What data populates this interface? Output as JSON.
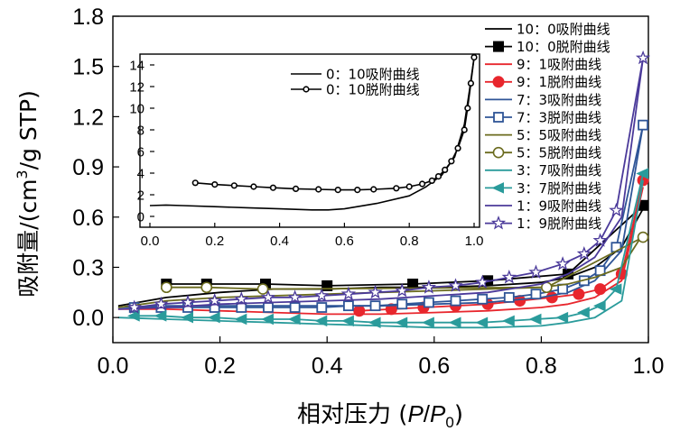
{
  "chart_data": [
    {
      "type": "line",
      "title": "",
      "xlabel": "相对压力 (P/P0)",
      "xlabel_prefix": "相对压力 (",
      "xlabel_P": "P",
      "xlabel_slash": "/",
      "xlabel_P0": "P",
      "xlabel_sub": "0",
      "xlabel_suffix": ")",
      "ylabel": "吸附量/(cm3/g STP)",
      "ylabel_prefix": "吸附量/(cm",
      "ylabel_sup": "3",
      "ylabel_suffix": "/g STP)",
      "xlim": [
        0.0,
        1.0
      ],
      "ylim": [
        -0.15,
        1.8
      ],
      "xticks": [
        "0.0",
        "0.2",
        "0.4",
        "0.6",
        "0.8",
        "1.0"
      ],
      "xtick_values": [
        0.0,
        0.2,
        0.4,
        0.6,
        0.8,
        1.0
      ],
      "yticks": [
        "0.0",
        "0.3",
        "0.6",
        "0.9",
        "1.2",
        "1.5",
        "1.8"
      ],
      "ytick_values": [
        0.0,
        0.3,
        0.6,
        0.9,
        1.2,
        1.5,
        1.8
      ],
      "legend_position": "top-right",
      "series": [
        {
          "name": "10：0吸附曲线",
          "color": "#000000",
          "marker": "none",
          "x": [
            0.01,
            0.1,
            0.2,
            0.3,
            0.4,
            0.5,
            0.6,
            0.7,
            0.8,
            0.85,
            0.9,
            0.95,
            0.99
          ],
          "y": [
            0.07,
            0.12,
            0.15,
            0.17,
            0.17,
            0.18,
            0.18,
            0.19,
            0.21,
            0.24,
            0.3,
            0.42,
            0.65
          ]
        },
        {
          "name": "10：0脱附曲线",
          "color": "#000000",
          "marker": "square-filled",
          "x": [
            0.1,
            0.175,
            0.285,
            0.4,
            0.56,
            0.7,
            0.85,
            0.99
          ],
          "y": [
            0.2,
            0.2,
            0.2,
            0.19,
            0.2,
            0.22,
            0.26,
            0.67
          ]
        },
        {
          "name": "9：1吸附曲线",
          "color": "#e8262d",
          "marker": "none",
          "x": [
            0.01,
            0.1,
            0.2,
            0.3,
            0.4,
            0.5,
            0.6,
            0.7,
            0.8,
            0.85,
            0.9,
            0.95,
            0.99
          ],
          "y": [
            0.05,
            0.05,
            0.04,
            0.03,
            0.02,
            0.02,
            0.03,
            0.04,
            0.06,
            0.08,
            0.12,
            0.22,
            0.78
          ]
        },
        {
          "name": "9：1脱附曲线",
          "color": "#e8262d",
          "marker": "circle-filled",
          "x": [
            0.46,
            0.52,
            0.58,
            0.64,
            0.7,
            0.76,
            0.82,
            0.87,
            0.91,
            0.95,
            0.99
          ],
          "y": [
            0.04,
            0.05,
            0.06,
            0.07,
            0.08,
            0.1,
            0.12,
            0.14,
            0.17,
            0.26,
            0.82
          ]
        },
        {
          "name": "7：3吸附曲线",
          "color": "#2f5597",
          "marker": "none",
          "x": [
            0.01,
            0.1,
            0.2,
            0.3,
            0.4,
            0.5,
            0.6,
            0.7,
            0.8,
            0.85,
            0.9,
            0.95,
            0.99
          ],
          "y": [
            0.06,
            0.07,
            0.07,
            0.07,
            0.07,
            0.07,
            0.08,
            0.09,
            0.12,
            0.15,
            0.22,
            0.4,
            1.15
          ]
        },
        {
          "name": "7：3脱附曲线",
          "color": "#2f5597",
          "marker": "square-open",
          "x": [
            0.04,
            0.09,
            0.14,
            0.19,
            0.24,
            0.29,
            0.34,
            0.39,
            0.44,
            0.49,
            0.54,
            0.59,
            0.64,
            0.69,
            0.74,
            0.79,
            0.84,
            0.88,
            0.91,
            0.94,
            0.99
          ],
          "y": [
            0.06,
            0.06,
            0.06,
            0.06,
            0.06,
            0.06,
            0.06,
            0.06,
            0.07,
            0.07,
            0.08,
            0.09,
            0.1,
            0.11,
            0.12,
            0.14,
            0.17,
            0.22,
            0.28,
            0.42,
            1.15
          ]
        },
        {
          "name": "5：5吸附曲线",
          "color": "#6b6b1e",
          "marker": "none",
          "x": [
            0.01,
            0.1,
            0.2,
            0.3,
            0.4,
            0.5,
            0.6,
            0.7,
            0.8,
            0.85,
            0.9,
            0.95,
            0.99
          ],
          "y": [
            0.06,
            0.1,
            0.12,
            0.13,
            0.14,
            0.15,
            0.16,
            0.17,
            0.18,
            0.2,
            0.24,
            0.3,
            0.5
          ]
        },
        {
          "name": "5：5脱附曲线",
          "color": "#6b6b1e",
          "marker": "circle-open",
          "x": [
            0.1,
            0.175,
            0.28,
            0.81,
            0.99
          ],
          "y": [
            0.18,
            0.18,
            0.17,
            0.18,
            0.48
          ]
        },
        {
          "name": "3：7吸附曲线",
          "color": "#2a9b9b",
          "marker": "none",
          "x": [
            0.01,
            0.1,
            0.2,
            0.3,
            0.4,
            0.5,
            0.6,
            0.7,
            0.8,
            0.85,
            0.9,
            0.95,
            0.99
          ],
          "y": [
            0.0,
            -0.01,
            -0.02,
            -0.03,
            -0.04,
            -0.05,
            -0.06,
            -0.06,
            -0.05,
            -0.03,
            0.0,
            0.1,
            0.82
          ]
        },
        {
          "name": "3：7脱附曲线",
          "color": "#2a9b9b",
          "marker": "triangle-left-filled",
          "x": [
            0.04,
            0.09,
            0.14,
            0.19,
            0.24,
            0.29,
            0.34,
            0.39,
            0.44,
            0.49,
            0.54,
            0.59,
            0.64,
            0.69,
            0.74,
            0.79,
            0.84,
            0.88,
            0.91,
            0.94,
            0.99
          ],
          "y": [
            0.01,
            0.01,
            0.0,
            0.0,
            -0.01,
            -0.01,
            -0.01,
            -0.02,
            -0.02,
            -0.03,
            -0.03,
            -0.03,
            -0.03,
            -0.03,
            -0.02,
            -0.01,
            0.0,
            0.03,
            0.07,
            0.17,
            0.86
          ]
        },
        {
          "name": "1：9吸附曲线",
          "color": "#4b3a9a",
          "marker": "none",
          "x": [
            0.01,
            0.1,
            0.2,
            0.3,
            0.4,
            0.5,
            0.6,
            0.7,
            0.8,
            0.85,
            0.9,
            0.95,
            0.99
          ],
          "y": [
            0.05,
            0.06,
            0.08,
            0.09,
            0.1,
            0.11,
            0.13,
            0.15,
            0.2,
            0.26,
            0.36,
            0.6,
            1.55
          ]
        },
        {
          "name": "1：9脱附曲线",
          "color": "#4b3a9a",
          "marker": "star-open",
          "x": [
            0.04,
            0.09,
            0.14,
            0.19,
            0.24,
            0.29,
            0.34,
            0.39,
            0.44,
            0.49,
            0.54,
            0.59,
            0.64,
            0.69,
            0.74,
            0.79,
            0.84,
            0.88,
            0.91,
            0.94,
            0.99
          ],
          "y": [
            0.06,
            0.08,
            0.09,
            0.1,
            0.11,
            0.12,
            0.12,
            0.13,
            0.14,
            0.15,
            0.16,
            0.18,
            0.19,
            0.21,
            0.24,
            0.27,
            0.32,
            0.38,
            0.46,
            0.64,
            1.55
          ]
        }
      ]
    },
    {
      "type": "line",
      "title": "",
      "xlabel": "",
      "ylabel": "",
      "xlim": [
        0.0,
        1.0
      ],
      "ylim": [
        -1,
        15
      ],
      "xticks": [
        "0.0",
        "0.2",
        "0.4",
        "0.6",
        "0.8",
        "1.0"
      ],
      "xtick_values": [
        0.0,
        0.2,
        0.4,
        0.6,
        0.8,
        1.0
      ],
      "yticks": [
        "0",
        "2",
        "4",
        "6",
        "8",
        "10",
        "12",
        "14"
      ],
      "ytick_values": [
        0,
        2,
        4,
        6,
        8,
        10,
        12,
        14
      ],
      "legend_position": "top-right",
      "series": [
        {
          "name": "0：10吸附曲线",
          "color": "#000000",
          "marker": "none",
          "x": [
            0.0,
            0.05,
            0.1,
            0.2,
            0.3,
            0.4,
            0.5,
            0.55,
            0.6,
            0.7,
            0.8,
            0.85,
            0.9,
            0.94,
            0.97,
            0.985,
            1.0
          ],
          "y": [
            1.0,
            1.05,
            1.0,
            0.9,
            0.8,
            0.7,
            0.6,
            0.6,
            0.7,
            1.2,
            1.9,
            2.7,
            3.8,
            5.5,
            8.5,
            11.5,
            14.7
          ]
        },
        {
          "name": "0：10脱附曲线",
          "color": "#000000",
          "marker": "circle-open",
          "x": [
            0.14,
            0.2,
            0.26,
            0.32,
            0.38,
            0.45,
            0.52,
            0.58,
            0.64,
            0.69,
            0.76,
            0.8,
            0.84,
            0.87,
            0.89,
            0.91,
            0.93,
            0.95,
            0.97,
            0.98,
            0.99,
            1.0
          ],
          "y": [
            3.1,
            2.95,
            2.85,
            2.75,
            2.65,
            2.55,
            2.5,
            2.45,
            2.45,
            2.5,
            2.6,
            2.75,
            3.0,
            3.3,
            3.7,
            4.3,
            5.1,
            6.3,
            8.0,
            10.0,
            12.3,
            14.7
          ]
        }
      ]
    }
  ]
}
